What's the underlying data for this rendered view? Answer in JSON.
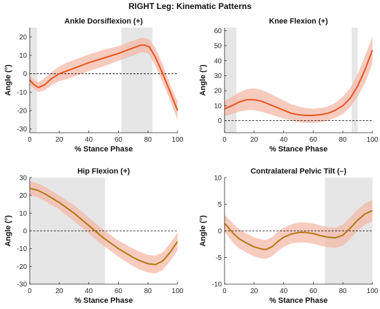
{
  "figure": {
    "title": "RIGHT Leg: Kinematic Patterns"
  },
  "colors": {
    "band": "#f5b5a4",
    "shade": "#e6e6e6",
    "line_orange": "#e8521e",
    "line_olive": "#b2780f",
    "zero_line": "#000000"
  },
  "chart_data": [
    {
      "type": "line",
      "title": "Ankle Dorsiflexion (+)",
      "xlabel": "% Stance Phase",
      "ylabel": "Angle (°)",
      "xlim": [
        0,
        100
      ],
      "ylim": [
        -32,
        25
      ],
      "xticks": [
        0,
        20,
        40,
        60,
        80,
        100
      ],
      "yticks": [
        -30,
        -20,
        -10,
        0,
        10,
        20
      ],
      "line_color": "line_orange",
      "shaded_regions": [
        [
          0,
          5
        ],
        [
          62,
          83
        ]
      ],
      "series": [
        {
          "x": [
            0,
            3,
            6,
            10,
            15,
            20,
            25,
            30,
            40,
            50,
            60,
            65,
            70,
            75,
            78,
            81,
            85,
            90,
            95,
            100
          ],
          "y": [
            -3.5,
            -6,
            -7.5,
            -6,
            -2.5,
            0,
            1.5,
            3,
            6,
            8.5,
            11,
            12.5,
            14,
            15.5,
            15.5,
            14.5,
            9,
            0,
            -10,
            -20
          ],
          "upper": [
            -1,
            -3.5,
            -4.5,
            -2.5,
            1,
            4,
            6,
            7.5,
            10.5,
            13,
            15,
            16.5,
            18,
            19.5,
            19.5,
            18.5,
            14,
            5,
            -6,
            -15
          ],
          "lower": [
            -6,
            -8.5,
            -10,
            -9,
            -6,
            -4,
            -3,
            -1.5,
            1.5,
            4,
            7,
            8.5,
            10,
            11.5,
            11.5,
            10.5,
            4,
            -5,
            -14.5,
            -25
          ]
        }
      ]
    },
    {
      "type": "line",
      "title": "Knee Flexion (+)",
      "xlabel": "% Stance Phase",
      "ylabel": "Angle (°)",
      "xlim": [
        0,
        100
      ],
      "ylim": [
        -8,
        62
      ],
      "xticks": [
        0,
        20,
        40,
        60,
        80,
        100
      ],
      "yticks": [
        0,
        10,
        20,
        30,
        40,
        50,
        60
      ],
      "line_color": "line_orange",
      "shaded_regions": [
        [
          0,
          8
        ],
        [
          86,
          90
        ]
      ],
      "series": [
        {
          "x": [
            0,
            5,
            10,
            15,
            20,
            25,
            30,
            35,
            40,
            45,
            50,
            55,
            60,
            65,
            70,
            75,
            80,
            85,
            90,
            95,
            100
          ],
          "y": [
            8,
            10,
            12.5,
            14,
            14,
            13,
            11,
            9,
            7,
            5,
            4,
            3.5,
            3.5,
            4,
            5,
            7,
            10,
            15,
            23,
            34,
            47
          ],
          "upper": [
            13,
            16,
            19,
            21,
            21.5,
            20.5,
            18.5,
            16,
            13.5,
            11,
            9.5,
            8.5,
            8,
            8.5,
            9.5,
            12,
            16,
            22,
            31,
            43,
            56
          ],
          "lower": [
            3,
            4.5,
            6,
            7,
            7,
            6,
            4.5,
            3,
            1.5,
            0,
            -1,
            -1.5,
            -1.5,
            -1,
            0,
            2,
            4.5,
            9,
            16,
            25,
            38
          ]
        }
      ]
    },
    {
      "type": "line",
      "title": "Hip Flexion (+)",
      "xlabel": "% Stance Phase",
      "ylabel": "Angle (°)",
      "xlim": [
        0,
        100
      ],
      "ylim": [
        -30,
        30
      ],
      "xticks": [
        0,
        20,
        40,
        60,
        80,
        100
      ],
      "yticks": [
        -30,
        -20,
        -10,
        0,
        10,
        20,
        30
      ],
      "line_color": "line_olive",
      "shaded_regions": [
        [
          0,
          51
        ]
      ],
      "series": [
        {
          "x": [
            0,
            5,
            10,
            20,
            30,
            40,
            50,
            60,
            70,
            75,
            80,
            85,
            90,
            95,
            100
          ],
          "y": [
            24,
            23,
            21,
            16,
            10,
            3,
            -4,
            -10,
            -15,
            -17,
            -18.5,
            -19,
            -17,
            -12,
            -6
          ],
          "upper": [
            28,
            27,
            25,
            20,
            14.5,
            7.5,
            0.5,
            -5.5,
            -10,
            -12,
            -13.5,
            -14,
            -12,
            -7,
            -1
          ],
          "lower": [
            20,
            19,
            17,
            12,
            5.5,
            -1.5,
            -8.5,
            -14.5,
            -20,
            -22,
            -23.5,
            -24,
            -22,
            -17,
            -11
          ]
        }
      ]
    },
    {
      "type": "line",
      "title": "Contralateral Pelvic Tilt (–)",
      "xlabel": "% Stance Phase",
      "ylabel": "Angle (°)",
      "xlim": [
        0,
        100
      ],
      "ylim": [
        -10,
        10
      ],
      "xticks": [
        0,
        20,
        40,
        60,
        80,
        100
      ],
      "yticks": [
        -10,
        -5,
        0,
        5,
        10
      ],
      "line_color": "line_olive",
      "shaded_regions": [
        [
          68,
          100
        ]
      ],
      "series": [
        {
          "x": [
            0,
            3,
            6,
            10,
            15,
            20,
            25,
            28,
            32,
            36,
            40,
            45,
            50,
            55,
            60,
            65,
            70,
            75,
            80,
            85,
            90,
            95,
            100
          ],
          "y": [
            1.4,
            0.5,
            -0.5,
            -1.5,
            -2.3,
            -3,
            -3.4,
            -3.5,
            -3,
            -2,
            -1.2,
            -0.6,
            -0.3,
            -0.3,
            -0.5,
            -0.9,
            -1.2,
            -1.3,
            -0.8,
            0.5,
            2,
            3.2,
            3.8
          ],
          "upper": [
            3,
            2.2,
            1.3,
            0.3,
            -0.5,
            -1.2,
            -1.6,
            -1.7,
            -1.2,
            -0.2,
            0.6,
            1.2,
            1.6,
            1.6,
            1.4,
            1.0,
            0.7,
            0.6,
            1.2,
            2.5,
            4,
            5.2,
            5.8
          ],
          "lower": [
            -0.2,
            -1.2,
            -2.3,
            -3.3,
            -4.1,
            -4.8,
            -5.2,
            -5.3,
            -4.8,
            -3.8,
            -3.0,
            -2.4,
            -2.2,
            -2.2,
            -2.4,
            -2.8,
            -3.1,
            -3.2,
            -2.8,
            -1.5,
            0,
            1.2,
            1.8
          ]
        }
      ]
    }
  ]
}
